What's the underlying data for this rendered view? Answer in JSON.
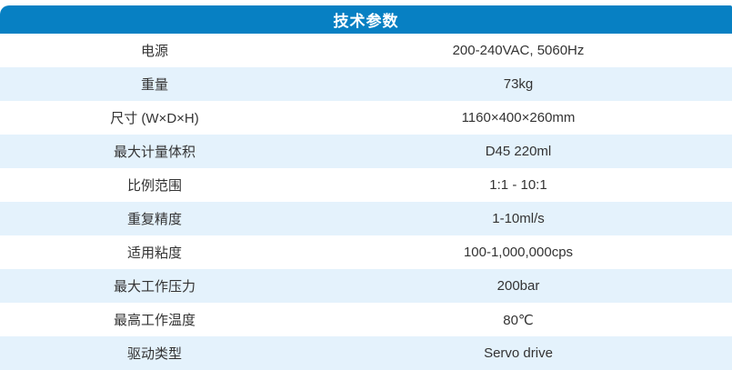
{
  "table": {
    "title": "技术参数",
    "rows": [
      {
        "label": "电源",
        "value": "200-240VAC, 5060Hz"
      },
      {
        "label": "重量",
        "value": "73kg"
      },
      {
        "label": "尺寸 (W×D×H)",
        "value": "1160×400×260mm"
      },
      {
        "label": "最大计量体积",
        "value": "D45 220ml"
      },
      {
        "label": "比例范围",
        "value": "1:1 - 10:1"
      },
      {
        "label": "重复精度",
        "value": "1-10ml/s"
      },
      {
        "label": "适用粘度",
        "value": "100-1,000,000cps"
      },
      {
        "label": "最大工作压力",
        "value": "200bar"
      },
      {
        "label": "最高工作温度",
        "value": "80℃"
      },
      {
        "label": "驱动类型",
        "value": "Servo drive"
      }
    ]
  },
  "colors": {
    "header_bg": "#0780c3",
    "header_text": "#ffffff",
    "row_alt_bg": "#e4f2fc",
    "row_bg": "#ffffff",
    "text": "#333333"
  }
}
